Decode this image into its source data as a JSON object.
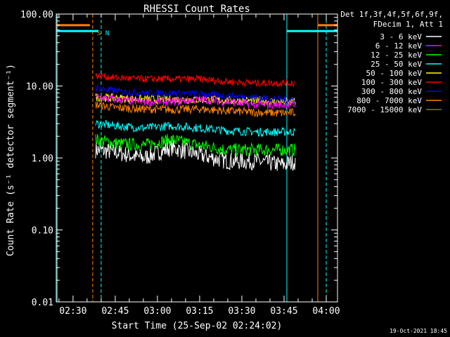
{
  "chart_data": {
    "type": "line",
    "title": "RHESSI Count Rates",
    "xlabel": "Start Time (25-Sep-02 02:24:02)",
    "ylabel": "Count Rate (s⁻¹ detector segment⁻¹)",
    "y_scale": "log",
    "ylim": [
      0.01,
      100
    ],
    "xlim": [
      "02:24:02",
      "04:04:00"
    ],
    "x_ticks": [
      "02:30",
      "02:45",
      "03:00",
      "03:15",
      "03:30",
      "03:45",
      "04:00"
    ],
    "y_ticks": [
      "0.01",
      "0.10",
      "1.00",
      "10.00",
      "100.00"
    ],
    "grid": false,
    "legend_position": "top-right",
    "legend_header": [
      "Det 1f,3f,4f,5f,6f,9f,",
      "FDecim 1, Att 1"
    ],
    "timestamp": "19-Oct-2021 18:45",
    "series": [
      {
        "name": "3 - 6 keV",
        "color": "#ffffff",
        "x": [
          "02:38",
          "02:45",
          "02:55",
          "03:05",
          "03:15",
          "03:25",
          "03:35",
          "03:45",
          "03:49"
        ],
        "values": [
          1.3,
          1.2,
          1.0,
          1.4,
          1.1,
          0.9,
          0.9,
          0.8,
          0.9
        ]
      },
      {
        "name": "6 - 12 keV",
        "color": "#ff00ff",
        "x": [
          "02:38",
          "02:45",
          "02:55",
          "03:05",
          "03:15",
          "03:25",
          "03:35",
          "03:45",
          "03:49"
        ],
        "values": [
          7.0,
          6.5,
          6.0,
          6.0,
          6.5,
          6.0,
          5.5,
          5.5,
          5.5
        ]
      },
      {
        "name": "12 - 25 keV",
        "color": "#00ff00",
        "x": [
          "02:38",
          "02:45",
          "02:55",
          "03:05",
          "03:15",
          "03:25",
          "03:35",
          "03:45",
          "03:49"
        ],
        "values": [
          1.8,
          1.6,
          1.5,
          1.8,
          1.5,
          1.3,
          1.3,
          1.3,
          1.3
        ]
      },
      {
        "name": "25 - 50 keV",
        "color": "#00ffff",
        "x": [
          "02:38",
          "02:45",
          "02:55",
          "03:05",
          "03:15",
          "03:25",
          "03:35",
          "03:45",
          "03:49"
        ],
        "values": [
          3.0,
          2.8,
          2.6,
          2.8,
          2.6,
          2.4,
          2.3,
          2.3,
          2.3
        ]
      },
      {
        "name": "50 - 100 keV",
        "color": "#ffff00",
        "x": [
          "02:38",
          "02:45",
          "02:55",
          "03:05",
          "03:15",
          "03:25",
          "03:35",
          "03:45",
          "03:49"
        ],
        "values": [
          7.0,
          6.8,
          6.5,
          6.5,
          6.5,
          6.3,
          6.2,
          6.0,
          6.0
        ]
      },
      {
        "name": "100 - 300 keV",
        "color": "#ff0000",
        "x": [
          "02:38",
          "02:45",
          "02:55",
          "03:05",
          "03:15",
          "03:25",
          "03:35",
          "03:45",
          "03:49"
        ],
        "values": [
          14.0,
          13.0,
          12.5,
          12.5,
          12.5,
          11.5,
          11.0,
          11.0,
          11.0
        ]
      },
      {
        "name": "300 - 800 keV",
        "color": "#0000ff",
        "x": [
          "02:38",
          "02:45",
          "02:55",
          "03:05",
          "03:15",
          "03:25",
          "03:35",
          "03:45",
          "03:49"
        ],
        "values": [
          9.5,
          8.5,
          8.0,
          8.0,
          7.8,
          7.3,
          7.0,
          6.5,
          6.5
        ]
      },
      {
        "name": "800 - 7000 keV",
        "color": "#ff8000",
        "x": [
          "02:38",
          "02:45",
          "02:55",
          "03:05",
          "03:15",
          "03:25",
          "03:35",
          "03:45",
          "03:49"
        ],
        "values": [
          5.5,
          5.0,
          4.8,
          4.7,
          4.8,
          4.5,
          4.3,
          4.2,
          4.3
        ]
      },
      {
        "name": "7000 - 15000 keV",
        "color": "#808000",
        "x": [],
        "values": []
      }
    ],
    "markers": [
      {
        "label": "S",
        "color": "#ff8000",
        "style": "dashed",
        "time": "02:37"
      },
      {
        "label": "N",
        "color": "#00ffff",
        "style": "dashed",
        "time": "02:40"
      },
      {
        "label": "",
        "color": "#00ffff",
        "style": "solid",
        "time": "02:24:20"
      },
      {
        "label": "",
        "color": "#00ffff",
        "style": "solid",
        "time": "03:46"
      },
      {
        "label": "",
        "color": "#ff8000",
        "style": "solid",
        "time": "03:57"
      },
      {
        "label": "",
        "color": "#00ffff",
        "style": "dashed",
        "time": "04:00"
      }
    ],
    "state_bars": [
      {
        "color": "#ff8000",
        "from": "02:24:02",
        "to": "02:36",
        "level": 70
      },
      {
        "color": "#00ffff",
        "from": "02:24:02",
        "to": "02:39",
        "level": 58
      },
      {
        "color": "#00ffff",
        "from": "03:46",
        "to": "04:04",
        "level": 58
      },
      {
        "color": "#ff8000",
        "from": "03:57",
        "to": "04:04",
        "level": 70
      }
    ]
  }
}
